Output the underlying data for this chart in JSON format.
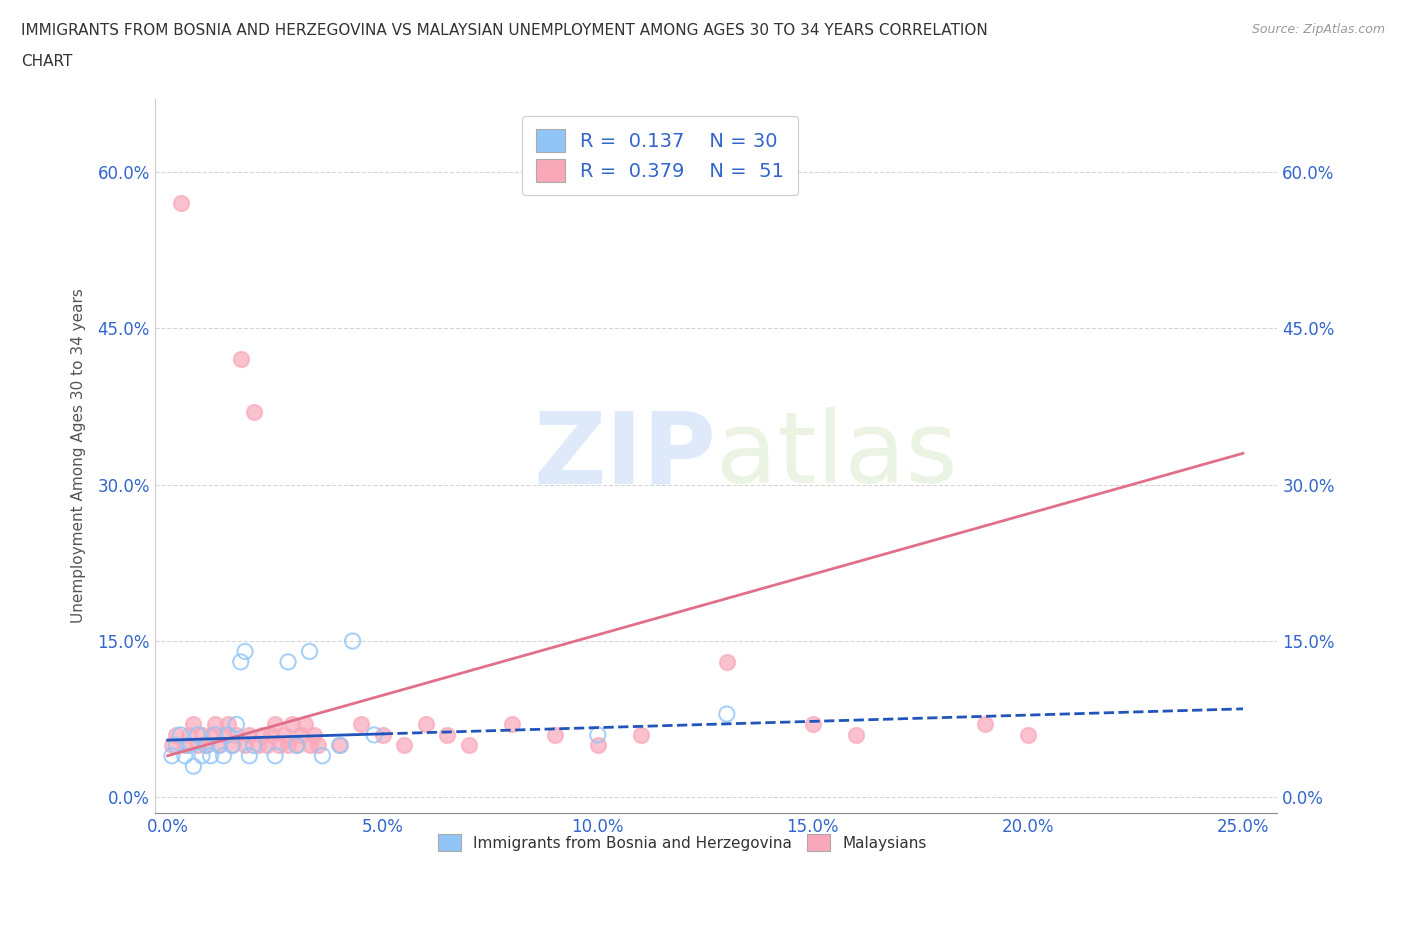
{
  "title_line1": "IMMIGRANTS FROM BOSNIA AND HERZEGOVINA VS MALAYSIAN UNEMPLOYMENT AMONG AGES 30 TO 34 YEARS CORRELATION",
  "title_line2": "CHART",
  "source": "Source: ZipAtlas.com",
  "ylabel": "Unemployment Among Ages 30 to 34 years",
  "x_ticks": [
    "0.0%",
    "5.0%",
    "10.0%",
    "15.0%",
    "20.0%",
    "25.0%"
  ],
  "x_tick_vals": [
    0.0,
    0.05,
    0.1,
    0.15,
    0.2,
    0.25
  ],
  "y_ticks": [
    "0.0%",
    "15.0%",
    "30.0%",
    "45.0%",
    "60.0%"
  ],
  "y_tick_vals": [
    0.0,
    0.15,
    0.3,
    0.45,
    0.6
  ],
  "xlim": [
    -0.003,
    0.258
  ],
  "ylim": [
    -0.015,
    0.67
  ],
  "blue_R": 0.137,
  "blue_N": 30,
  "pink_R": 0.379,
  "pink_N": 51,
  "blue_color": "#92c5f7",
  "pink_color": "#f9a8ba",
  "blue_line_color": "#2255bb",
  "pink_line_color": "#e0708a",
  "watermark_zip": "ZIP",
  "watermark_atlas": "atlas",
  "background_color": "#ffffff",
  "grid_color": "#cccccc",
  "blue_x": [
    0.001,
    0.002,
    0.003,
    0.004,
    0.005,
    0.006,
    0.007,
    0.008,
    0.009,
    0.01,
    0.011,
    0.012,
    0.013,
    0.014,
    0.015,
    0.016,
    0.017,
    0.018,
    0.019,
    0.02,
    0.025,
    0.028,
    0.03,
    0.033,
    0.036,
    0.04,
    0.043,
    0.048,
    0.1,
    0.13
  ],
  "blue_y": [
    0.04,
    0.05,
    0.06,
    0.04,
    0.05,
    0.03,
    0.06,
    0.04,
    0.05,
    0.04,
    0.06,
    0.05,
    0.04,
    0.06,
    0.05,
    0.07,
    0.13,
    0.14,
    0.04,
    0.05,
    0.04,
    0.13,
    0.05,
    0.14,
    0.04,
    0.05,
    0.15,
    0.06,
    0.06,
    0.08
  ],
  "pink_x": [
    0.001,
    0.002,
    0.003,
    0.004,
    0.005,
    0.006,
    0.007,
    0.008,
    0.009,
    0.01,
    0.011,
    0.012,
    0.013,
    0.014,
    0.015,
    0.016,
    0.017,
    0.018,
    0.019,
    0.02,
    0.021,
    0.022,
    0.023,
    0.024,
    0.025,
    0.026,
    0.027,
    0.028,
    0.029,
    0.03,
    0.031,
    0.032,
    0.033,
    0.034,
    0.035,
    0.04,
    0.045,
    0.05,
    0.055,
    0.06,
    0.065,
    0.07,
    0.08,
    0.09,
    0.1,
    0.11,
    0.13,
    0.15,
    0.16,
    0.19,
    0.2
  ],
  "pink_y": [
    0.05,
    0.06,
    0.57,
    0.05,
    0.06,
    0.07,
    0.05,
    0.06,
    0.05,
    0.06,
    0.07,
    0.05,
    0.06,
    0.07,
    0.05,
    0.06,
    0.42,
    0.05,
    0.06,
    0.37,
    0.05,
    0.06,
    0.05,
    0.06,
    0.07,
    0.05,
    0.06,
    0.05,
    0.07,
    0.05,
    0.06,
    0.07,
    0.05,
    0.06,
    0.05,
    0.05,
    0.07,
    0.06,
    0.05,
    0.07,
    0.06,
    0.05,
    0.07,
    0.06,
    0.05,
    0.06,
    0.13,
    0.07,
    0.06,
    0.07,
    0.06
  ],
  "blue_trend_x": [
    0.0,
    0.25
  ],
  "blue_trend_y": [
    0.055,
    0.085
  ],
  "pink_trend_x": [
    0.0,
    0.25
  ],
  "pink_trend_y": [
    0.04,
    0.33
  ]
}
